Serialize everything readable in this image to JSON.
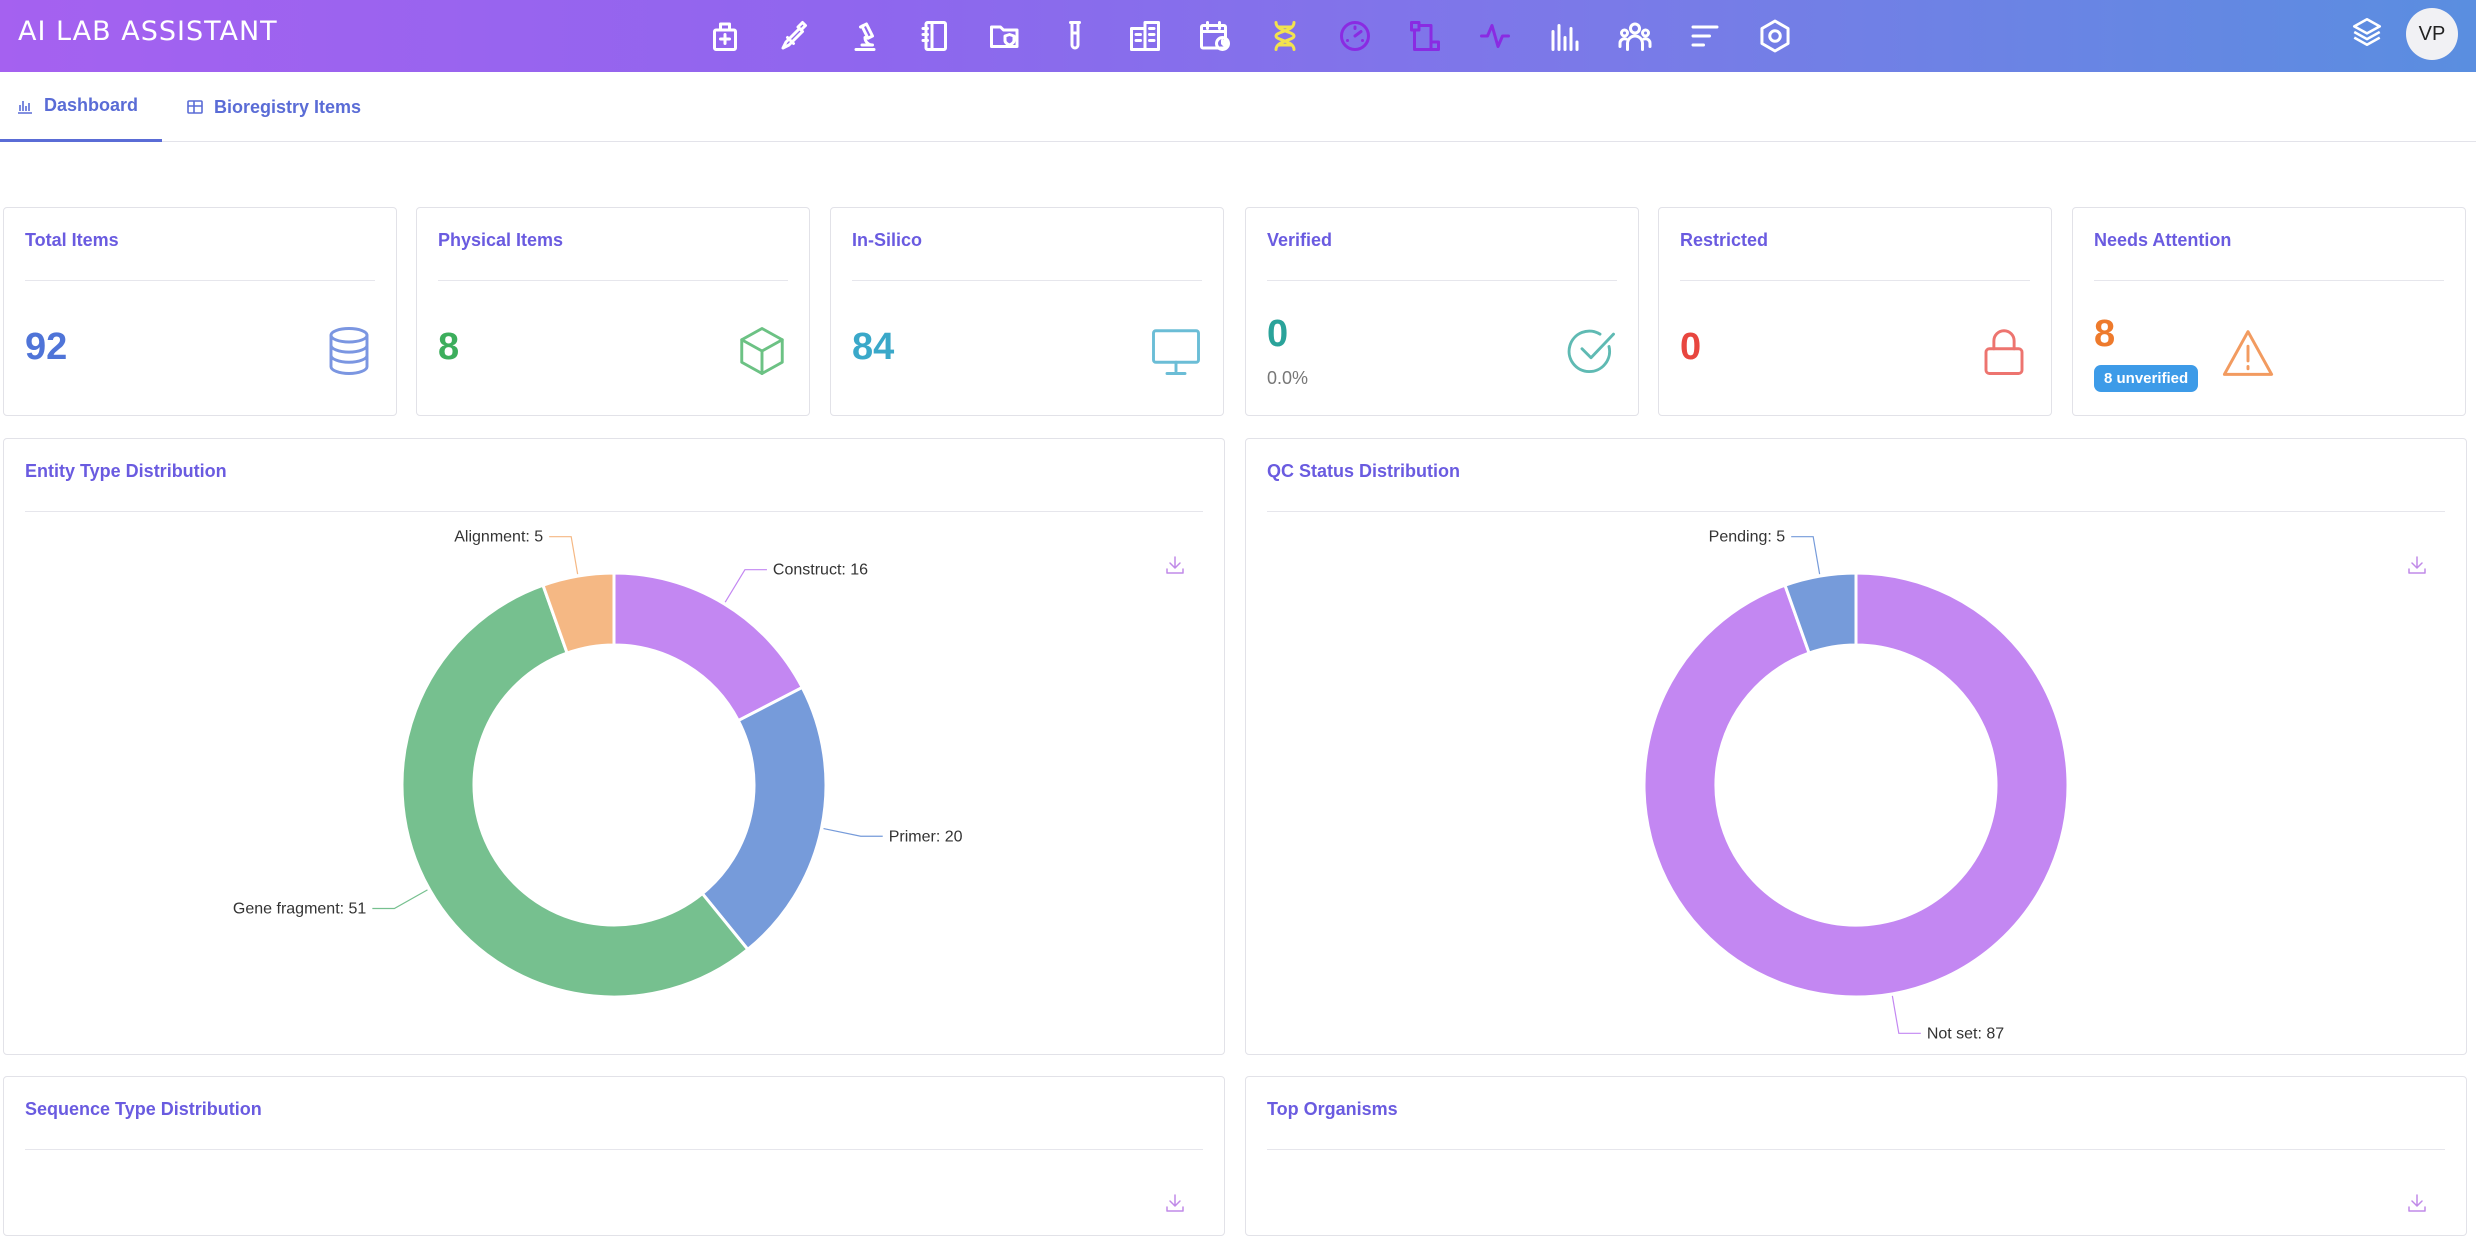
{
  "app": {
    "brand": "AI LAB ASSISTANT",
    "nav_icons": [
      "medical-kit-icon",
      "pipette-icon",
      "microscope-icon",
      "notebook-icon",
      "folder-shield-icon",
      "test-tube-icon",
      "building-icon",
      "calendar-clock-icon",
      "dna-icon",
      "gauge-icon",
      "workflow-icon",
      "activity-icon",
      "bar-chart-icon",
      "team-icon",
      "menu-lines-icon",
      "settings-hex-icon"
    ],
    "avatar_initials": "VP"
  },
  "tabs": [
    {
      "label": "Dashboard",
      "active": true
    },
    {
      "label": "Bioregistry Items",
      "active": false
    }
  ],
  "stats": [
    {
      "title": "Total Items",
      "value": "92",
      "color": "#4f74d8",
      "icon": "database-icon"
    },
    {
      "title": "Physical Items",
      "value": "8",
      "color": "#3cae5c",
      "icon": "cube-icon"
    },
    {
      "title": "In-Silico",
      "value": "84",
      "color": "#3aa8c9",
      "icon": "monitor-icon"
    },
    {
      "title": "Verified",
      "value": "0",
      "sub": "0.0%",
      "color": "#2aa39a",
      "icon": "check-circle-icon"
    },
    {
      "title": "Restricted",
      "value": "0",
      "color": "#e8463f",
      "icon": "lock-icon"
    },
    {
      "title": "Needs Attention",
      "value": "8",
      "badge": "8 unverified",
      "color": "#ee7a2c",
      "icon": "warning-icon"
    }
  ],
  "panels": {
    "entity": {
      "title": "Entity Type Distribution"
    },
    "qc": {
      "title": "QC Status Distribution"
    },
    "sequence": {
      "title": "Sequence Type Distribution"
    },
    "organisms": {
      "title": "Top Organisms"
    }
  },
  "chart_data": [
    {
      "type": "pie",
      "title": "Entity Type Distribution",
      "categories": [
        "Construct",
        "Primer",
        "Gene fragment",
        "Alignment"
      ],
      "values": [
        16,
        20,
        51,
        5
      ],
      "labels": [
        "Construct: 16",
        "Primer: 20",
        "Gene fragment: 51",
        "Alignment: 5"
      ],
      "colors": [
        "#c387f2",
        "#769bda",
        "#76c08f",
        "#f5b884"
      ],
      "donut": true
    },
    {
      "type": "pie",
      "title": "QC Status Distribution",
      "categories": [
        "Not set",
        "Pending"
      ],
      "values": [
        87,
        5
      ],
      "labels": [
        "Not set: 87",
        "Pending: 5"
      ],
      "colors": [
        "#c387f2",
        "#769bda"
      ],
      "donut": true
    }
  ]
}
